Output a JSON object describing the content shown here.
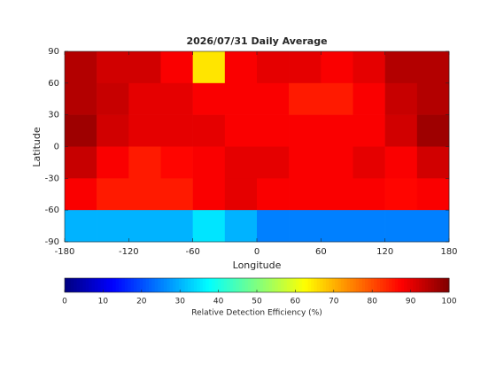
{
  "chart_data": {
    "type": "heatmap",
    "title": "2026/07/31 Daily Average",
    "xlabel": "Longitude",
    "ylabel": "Latitude",
    "xbins": [
      -180,
      -150,
      -120,
      -90,
      -60,
      -30,
      0,
      30,
      60,
      90,
      120,
      150,
      180
    ],
    "ybins": [
      90,
      60,
      30,
      0,
      -30,
      -60,
      -90
    ],
    "z": [
      [
        95,
        92,
        92,
        88,
        65,
        88,
        90,
        90,
        88,
        90,
        95,
        95
      ],
      [
        95,
        93,
        90,
        90,
        88,
        88,
        88,
        85,
        85,
        88,
        93,
        95
      ],
      [
        97,
        92,
        90,
        90,
        90,
        88,
        88,
        88,
        88,
        88,
        92,
        97
      ],
      [
        93,
        88,
        85,
        87,
        88,
        90,
        90,
        88,
        88,
        90,
        88,
        92
      ],
      [
        88,
        85,
        85,
        85,
        88,
        90,
        88,
        88,
        88,
        88,
        87,
        88
      ],
      [
        30,
        30,
        30,
        30,
        35,
        30,
        25,
        25,
        25,
        25,
        25,
        25
      ]
    ],
    "xlim": [
      -180,
      180
    ],
    "xticks": [
      -180,
      -120,
      -60,
      0,
      60,
      120,
      180
    ],
    "ylim": [
      -90,
      90
    ],
    "yticks": [
      -90,
      -60,
      -30,
      0,
      30,
      60,
      90
    ],
    "colormap": "jet",
    "colorbar": {
      "label": "Relative Detection Efficiency (%)",
      "lim": [
        0,
        100
      ],
      "ticks": [
        0,
        10,
        20,
        30,
        40,
        50,
        60,
        70,
        80,
        90,
        100
      ]
    }
  }
}
